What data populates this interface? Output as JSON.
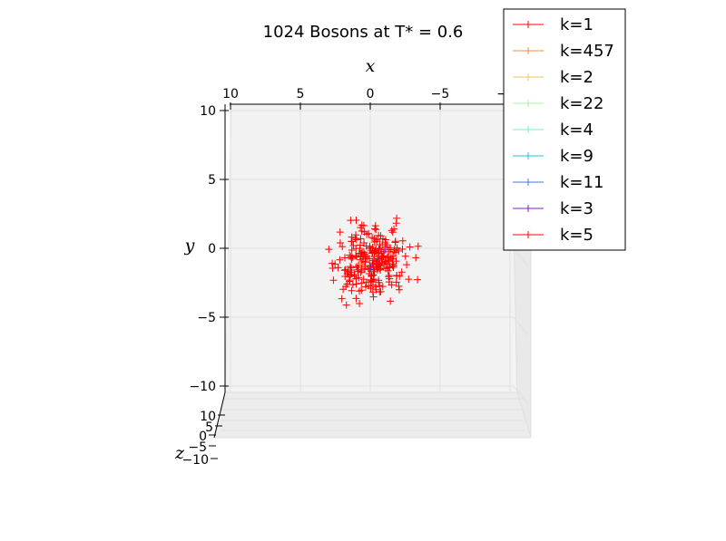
{
  "chart_data": {
    "type": "scatter",
    "title": "1024 Bosons at T* = 0.6",
    "xlabel": "x",
    "ylabel": "y",
    "zlabel": "z",
    "projection": "3d",
    "marker": "+",
    "grid": true,
    "legend_position": "top-right",
    "xlim": [
      10,
      -10
    ],
    "ylim": [
      -10,
      10
    ],
    "zlim": [
      -10,
      10
    ],
    "x_ticks": [
      "10",
      "5",
      "0",
      "−5",
      "−10"
    ],
    "y_ticks": [
      "10",
      "5",
      "0",
      "−5",
      "−10"
    ],
    "z_ticks": [
      "10",
      "5",
      "0",
      "−5",
      "−10"
    ],
    "series": [
      {
        "name": "k=1",
        "color": "#ff0000",
        "count": 230,
        "center": [
          0.0,
          -1.0
        ],
        "spread": 1.3
      },
      {
        "name": "k=457",
        "color": "#ff8c3a",
        "count": 0,
        "center": [
          0.0,
          -1.0
        ],
        "spread": 1.0
      },
      {
        "name": "k=2",
        "color": "#f0c060",
        "count": 1,
        "center": [
          0.2,
          -1.0
        ],
        "spread": 0.4
      },
      {
        "name": "k=22",
        "color": "#a8f0a0",
        "count": 0,
        "center": [
          0.0,
          -1.0
        ],
        "spread": 0.5
      },
      {
        "name": "k=4",
        "color": "#70f0d0",
        "count": 0,
        "center": [
          0.0,
          -1.0
        ],
        "spread": 0.5
      },
      {
        "name": "k=9",
        "color": "#20c0e0",
        "count": 0,
        "center": [
          0.0,
          -1.0
        ],
        "spread": 0.5
      },
      {
        "name": "k=11",
        "color": "#5070e0",
        "count": 0,
        "center": [
          0.0,
          -1.0
        ],
        "spread": 0.5
      },
      {
        "name": "k=3",
        "color": "#8020c0",
        "count": 3,
        "center": [
          -0.8,
          -1.2
        ],
        "spread": 0.5
      },
      {
        "name": "k=5",
        "color": "#ff0000",
        "count": 20,
        "center": [
          -0.5,
          -1.0
        ],
        "spread": 0.9
      }
    ]
  }
}
